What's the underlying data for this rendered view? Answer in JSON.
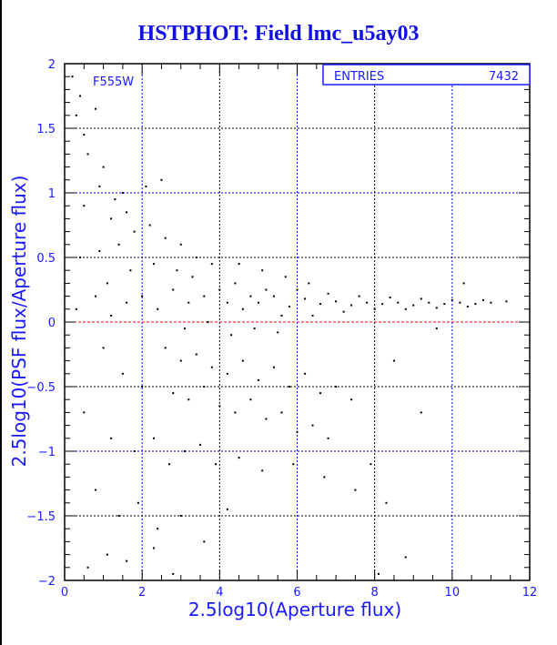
{
  "chart_data": {
    "type": "scatter",
    "title": "HSTPHOT: Field lmc_u5ay03",
    "xlabel": "2.5log10(Aperture flux)",
    "ylabel": "2.5log10(PSF flux/Aperture flux)",
    "xlim": [
      0,
      12
    ],
    "ylim": [
      -2,
      2
    ],
    "xticks": [
      "0",
      "2",
      "4",
      "6",
      "8",
      "10",
      "12"
    ],
    "yticks": [
      "-2",
      "-1.5",
      "-1",
      "-0.5",
      "0",
      "0.5",
      "1",
      "1.5",
      "2"
    ],
    "grid": true,
    "reference_line_y": 0,
    "filter_label": "F555W",
    "stats_box": {
      "label": "ENTRIES",
      "value": "7432"
    },
    "colors": {
      "axis_text": "#1a1aff",
      "points": "#000000",
      "reference_line": "#ff0000",
      "grid_major": "#0000ff",
      "grid_minor": "#000000"
    },
    "points_note_sample": true,
    "points": [
      [
        0.2,
        1.9
      ],
      [
        0.4,
        1.75
      ],
      [
        0.3,
        1.6
      ],
      [
        0.5,
        1.45
      ],
      [
        0.8,
        1.65
      ],
      [
        0.6,
        1.3
      ],
      [
        1.0,
        1.2
      ],
      [
        0.9,
        1.05
      ],
      [
        1.3,
        0.95
      ],
      [
        1.5,
        1.0
      ],
      [
        1.6,
        0.85
      ],
      [
        1.2,
        0.8
      ],
      [
        0.5,
        0.9
      ],
      [
        2.1,
        1.05
      ],
      [
        2.5,
        1.1
      ],
      [
        0.4,
        0.5
      ],
      [
        0.9,
        0.55
      ],
      [
        1.4,
        0.6
      ],
      [
        1.8,
        0.7
      ],
      [
        2.2,
        0.75
      ],
      [
        2.6,
        0.65
      ],
      [
        3.0,
        0.6
      ],
      [
        1.1,
        0.3
      ],
      [
        1.7,
        0.4
      ],
      [
        2.3,
        0.45
      ],
      [
        2.9,
        0.4
      ],
      [
        3.4,
        0.5
      ],
      [
        3.8,
        0.45
      ],
      [
        0.3,
        0.1
      ],
      [
        0.8,
        0.2
      ],
      [
        1.2,
        0.05
      ],
      [
        1.6,
        0.15
      ],
      [
        2.0,
        0.2
      ],
      [
        2.4,
        0.1
      ],
      [
        2.8,
        0.25
      ],
      [
        3.2,
        0.15
      ],
      [
        3.6,
        0.2
      ],
      [
        4.0,
        0.25
      ],
      [
        4.4,
        0.3
      ],
      [
        4.8,
        0.2
      ],
      [
        4.2,
        0.15
      ],
      [
        4.6,
        0.1
      ],
      [
        5.0,
        0.15
      ],
      [
        5.4,
        0.2
      ],
      [
        5.8,
        0.12
      ],
      [
        6.2,
        0.18
      ],
      [
        6.6,
        0.14
      ],
      [
        7.0,
        0.16
      ],
      [
        7.4,
        0.13
      ],
      [
        7.8,
        0.15
      ],
      [
        8.2,
        0.14
      ],
      [
        8.6,
        0.15
      ],
      [
        9.0,
        0.13
      ],
      [
        9.4,
        0.15
      ],
      [
        9.8,
        0.14
      ],
      [
        10.2,
        0.15
      ],
      [
        10.6,
        0.14
      ],
      [
        11.0,
        0.15
      ],
      [
        11.4,
        0.16
      ],
      [
        5.2,
        0.25
      ],
      [
        5.6,
        0.05
      ],
      [
        6.0,
        0.25
      ],
      [
        6.4,
        0.05
      ],
      [
        6.8,
        0.22
      ],
      [
        7.2,
        0.08
      ],
      [
        7.6,
        0.2
      ],
      [
        8.0,
        0.1
      ],
      [
        8.4,
        0.19
      ],
      [
        8.8,
        0.1
      ],
      [
        9.2,
        0.18
      ],
      [
        9.6,
        0.11
      ],
      [
        10.0,
        0.17
      ],
      [
        10.4,
        0.12
      ],
      [
        10.8,
        0.17
      ],
      [
        4.5,
        0.45
      ],
      [
        5.1,
        0.4
      ],
      [
        5.7,
        0.35
      ],
      [
        6.3,
        0.3
      ],
      [
        3.3,
        0.35
      ],
      [
        3.7,
        0.0
      ],
      [
        3.1,
        -0.05
      ],
      [
        4.3,
        -0.1
      ],
      [
        4.9,
        -0.05
      ],
      [
        5.5,
        -0.08
      ],
      [
        2.6,
        -0.2
      ],
      [
        3.0,
        -0.3
      ],
      [
        3.4,
        -0.25
      ],
      [
        3.8,
        -0.35
      ],
      [
        4.2,
        -0.4
      ],
      [
        4.6,
        -0.3
      ],
      [
        5.0,
        -0.45
      ],
      [
        5.4,
        -0.35
      ],
      [
        5.8,
        -0.5
      ],
      [
        6.2,
        -0.4
      ],
      [
        6.6,
        -0.55
      ],
      [
        7.0,
        -0.5
      ],
      [
        7.4,
        -0.6
      ],
      [
        2.8,
        -0.55
      ],
      [
        3.2,
        -0.6
      ],
      [
        3.6,
        -0.5
      ],
      [
        4.0,
        -0.65
      ],
      [
        4.4,
        -0.7
      ],
      [
        4.8,
        -0.6
      ],
      [
        5.2,
        -0.75
      ],
      [
        5.6,
        -0.7
      ],
      [
        6.0,
        -0.85
      ],
      [
        6.4,
        -0.8
      ],
      [
        6.8,
        -0.9
      ],
      [
        1.0,
        -0.2
      ],
      [
        1.5,
        -0.4
      ],
      [
        2.0,
        -0.5
      ],
      [
        0.5,
        -0.7
      ],
      [
        1.2,
        -0.9
      ],
      [
        1.8,
        -1.0
      ],
      [
        2.3,
        -0.9
      ],
      [
        2.7,
        -1.1
      ],
      [
        3.1,
        -1.0
      ],
      [
        3.5,
        -0.95
      ],
      [
        3.9,
        -1.1
      ],
      [
        4.5,
        -1.05
      ],
      [
        5.1,
        -1.15
      ],
      [
        5.9,
        -1.1
      ],
      [
        6.7,
        -1.2
      ],
      [
        7.5,
        -1.3
      ],
      [
        8.3,
        -1.4
      ],
      [
        0.8,
        -1.3
      ],
      [
        1.4,
        -1.5
      ],
      [
        1.9,
        -1.4
      ],
      [
        2.4,
        -1.6
      ],
      [
        3.0,
        -1.5
      ],
      [
        3.6,
        -1.7
      ],
      [
        4.2,
        -1.45
      ],
      [
        1.1,
        -1.8
      ],
      [
        1.6,
        -1.85
      ],
      [
        2.8,
        -1.95
      ],
      [
        2.3,
        -1.75
      ],
      [
        0.6,
        -1.9
      ],
      [
        8.1,
        -1.95
      ],
      [
        8.8,
        -1.82
      ],
      [
        7.9,
        -1.1
      ],
      [
        9.2,
        -0.7
      ],
      [
        8.5,
        -0.3
      ],
      [
        9.6,
        -0.05
      ],
      [
        10.3,
        0.3
      ]
    ]
  }
}
